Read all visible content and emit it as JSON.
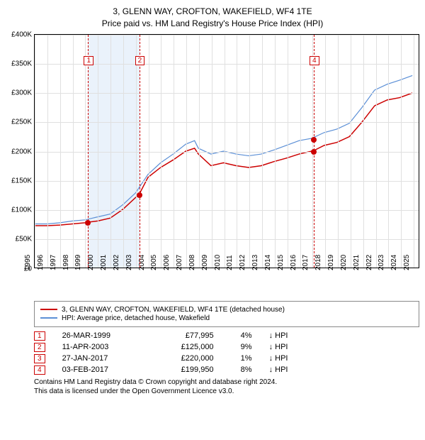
{
  "title_line1": "3, GLENN WAY, CROFTON, WAKEFIELD, WF4 1TE",
  "title_line2": "Price paid vs. HM Land Registry's House Price Index (HPI)",
  "chart": {
    "type": "line",
    "xlim": [
      1995,
      2025.5
    ],
    "ylim": [
      0,
      400000
    ],
    "ytick_step": 50000,
    "yticks": [
      "£0",
      "£50K",
      "£100K",
      "£150K",
      "£200K",
      "£250K",
      "£300K",
      "£350K",
      "£400K"
    ],
    "xticks": [
      1995,
      1996,
      1997,
      1998,
      1999,
      2000,
      2001,
      2002,
      2003,
      2004,
      2005,
      2006,
      2007,
      2008,
      2009,
      2010,
      2011,
      2012,
      2013,
      2014,
      2015,
      2016,
      2017,
      2018,
      2019,
      2020,
      2021,
      2022,
      2023,
      2024,
      2025
    ],
    "grid_color": "#e0e0e0",
    "background_color": "#ffffff",
    "band": {
      "start": 1999.23,
      "end": 2003.28,
      "color": "#eaf2fb"
    },
    "series": [
      {
        "name": "3, GLENN WAY, CROFTON, WAKEFIELD, WF4 1TE (detached house)",
        "color": "#cc0000",
        "width": 1.5,
        "data": [
          [
            1995,
            72000
          ],
          [
            1996,
            72000
          ],
          [
            1997,
            73000
          ],
          [
            1998,
            75000
          ],
          [
            1999,
            77000
          ],
          [
            1999.23,
            77995
          ],
          [
            2000,
            80000
          ],
          [
            2001,
            85000
          ],
          [
            2002,
            100000
          ],
          [
            2003,
            120000
          ],
          [
            2003.28,
            125000
          ],
          [
            2004,
            155000
          ],
          [
            2005,
            172000
          ],
          [
            2006,
            185000
          ],
          [
            2007,
            200000
          ],
          [
            2007.7,
            205000
          ],
          [
            2008,
            195000
          ],
          [
            2009,
            175000
          ],
          [
            2010,
            180000
          ],
          [
            2011,
            175000
          ],
          [
            2012,
            172000
          ],
          [
            2013,
            175000
          ],
          [
            2014,
            182000
          ],
          [
            2015,
            188000
          ],
          [
            2016,
            195000
          ],
          [
            2017,
            200000
          ],
          [
            2017.08,
            199950
          ],
          [
            2018,
            210000
          ],
          [
            2019,
            215000
          ],
          [
            2020,
            225000
          ],
          [
            2021,
            250000
          ],
          [
            2022,
            278000
          ],
          [
            2023,
            288000
          ],
          [
            2024,
            292000
          ],
          [
            2025,
            300000
          ]
        ]
      },
      {
        "name": "HPI: Average price, detached house, Wakefield",
        "color": "#5b8fd6",
        "width": 1.2,
        "data": [
          [
            1995,
            75000
          ],
          [
            1996,
            75000
          ],
          [
            1997,
            77000
          ],
          [
            1998,
            80000
          ],
          [
            1999,
            82000
          ],
          [
            2000,
            87000
          ],
          [
            2001,
            92000
          ],
          [
            2002,
            108000
          ],
          [
            2003,
            128000
          ],
          [
            2004,
            160000
          ],
          [
            2005,
            180000
          ],
          [
            2006,
            195000
          ],
          [
            2007,
            212000
          ],
          [
            2007.7,
            218000
          ],
          [
            2008,
            205000
          ],
          [
            2009,
            195000
          ],
          [
            2010,
            200000
          ],
          [
            2011,
            195000
          ],
          [
            2012,
            192000
          ],
          [
            2013,
            195000
          ],
          [
            2014,
            202000
          ],
          [
            2015,
            210000
          ],
          [
            2016,
            218000
          ],
          [
            2017,
            222000
          ],
          [
            2018,
            232000
          ],
          [
            2019,
            238000
          ],
          [
            2020,
            248000
          ],
          [
            2021,
            275000
          ],
          [
            2022,
            305000
          ],
          [
            2023,
            315000
          ],
          [
            2024,
            322000
          ],
          [
            2025,
            330000
          ]
        ]
      }
    ],
    "chart_markers": [
      {
        "n": "1",
        "x": 1999.23,
        "y_top": 30,
        "dashed": true,
        "dot_y": 77995
      },
      {
        "n": "2",
        "x": 2003.28,
        "y_top": 30,
        "dashed": true,
        "dot_y": 125000
      },
      {
        "n": "4",
        "x": 2017.09,
        "y_top": 30,
        "dashed": true,
        "dot_y": 199950,
        "extra_dot_y": 220000
      }
    ]
  },
  "legend": [
    {
      "color": "#cc0000",
      "label": "3, GLENN WAY, CROFTON, WAKEFIELD, WF4 1TE (detached house)"
    },
    {
      "color": "#5b8fd6",
      "label": "HPI: Average price, detached house, Wakefield"
    }
  ],
  "transactions": [
    {
      "n": "1",
      "date": "26-MAR-1999",
      "price": "£77,995",
      "pct": "4%",
      "dir": "↓ HPI"
    },
    {
      "n": "2",
      "date": "11-APR-2003",
      "price": "£125,000",
      "pct": "9%",
      "dir": "↓ HPI"
    },
    {
      "n": "3",
      "date": "27-JAN-2017",
      "price": "£220,000",
      "pct": "1%",
      "dir": "↓ HPI"
    },
    {
      "n": "4",
      "date": "03-FEB-2017",
      "price": "£199,950",
      "pct": "8%",
      "dir": "↓ HPI"
    }
  ],
  "footer1": "Contains HM Land Registry data © Crown copyright and database right 2024.",
  "footer2": "This data is licensed under the Open Government Licence v3.0."
}
